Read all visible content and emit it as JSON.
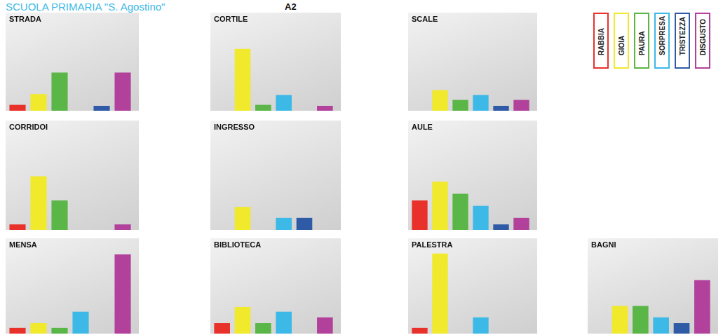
{
  "header": {
    "title": "SCUOLA PRIMARIA \"S. Agostino\"",
    "code": "A2"
  },
  "legend_items": [
    {
      "label": "RABBIA",
      "color": "#e8312a"
    },
    {
      "label": "GIOIA",
      "color": "#f0e92c"
    },
    {
      "label": "PAURA",
      "color": "#5ab646"
    },
    {
      "label": "SORPRESA",
      "color": "#3cb9e6"
    },
    {
      "label": "TRISTEZZA",
      "color": "#2f5aa6"
    },
    {
      "label": "DISGUSTO",
      "color": "#b2419b"
    }
  ],
  "chart_data": [
    {
      "type": "bar",
      "title": "STRADA",
      "categories": [
        "RABBIA",
        "GIOIA",
        "PAURA",
        "SORPRESA",
        "TRISTEZZA",
        "DISGUSTO"
      ],
      "values": [
        6,
        17,
        39,
        0,
        5,
        39
      ],
      "colors": [
        "#e8312a",
        "#f0e92c",
        "#5ab646",
        "#3cb9e6",
        "#2f5aa6",
        "#b2419b"
      ],
      "ylim": [
        0,
        100
      ],
      "tick_labels": false,
      "grid": false
    },
    {
      "type": "bar",
      "title": "CORTILE",
      "categories": [
        "RABBIA",
        "GIOIA",
        "PAURA",
        "SORPRESA",
        "TRISTEZZA",
        "DISGUSTO"
      ],
      "values": [
        0,
        63,
        6,
        16,
        0,
        5
      ],
      "colors": [
        "#e8312a",
        "#f0e92c",
        "#5ab646",
        "#3cb9e6",
        "#2f5aa6",
        "#b2419b"
      ],
      "ylim": [
        0,
        100
      ],
      "tick_labels": false,
      "grid": false
    },
    {
      "type": "bar",
      "title": "SCALE",
      "categories": [
        "RABBIA",
        "GIOIA",
        "PAURA",
        "SORPRESA",
        "TRISTEZZA",
        "DISGUSTO"
      ],
      "values": [
        0,
        21,
        11,
        16,
        5,
        11
      ],
      "colors": [
        "#e8312a",
        "#f0e92c",
        "#5ab646",
        "#3cb9e6",
        "#2f5aa6",
        "#b2419b"
      ],
      "ylim": [
        0,
        100
      ],
      "tick_labels": false,
      "grid": false
    },
    {
      "type": "bar",
      "title": "CORRIDOI",
      "categories": [
        "RABBIA",
        "GIOIA",
        "PAURA",
        "SORPRESA",
        "TRISTEZZA",
        "DISGUSTO"
      ],
      "values": [
        5,
        49,
        27,
        0,
        0,
        5
      ],
      "colors": [
        "#e8312a",
        "#f0e92c",
        "#5ab646",
        "#3cb9e6",
        "#2f5aa6",
        "#b2419b"
      ],
      "ylim": [
        0,
        100
      ],
      "tick_labels": false,
      "grid": false
    },
    {
      "type": "bar",
      "title": "INGRESSO",
      "categories": [
        "RABBIA",
        "GIOIA",
        "PAURA",
        "SORPRESA",
        "TRISTEZZA",
        "DISGUSTO"
      ],
      "values": [
        0,
        21,
        0,
        11,
        11,
        0
      ],
      "colors": [
        "#e8312a",
        "#f0e92c",
        "#5ab646",
        "#3cb9e6",
        "#2f5aa6",
        "#b2419b"
      ],
      "ylim": [
        0,
        100
      ],
      "tick_labels": false,
      "grid": false
    },
    {
      "type": "bar",
      "title": "AULE",
      "categories": [
        "RABBIA",
        "GIOIA",
        "PAURA",
        "SORPRESA",
        "TRISTEZZA",
        "DISGUSTO"
      ],
      "values": [
        27,
        44,
        33,
        22,
        5,
        11
      ],
      "colors": [
        "#e8312a",
        "#f0e92c",
        "#5ab646",
        "#3cb9e6",
        "#2f5aa6",
        "#b2419b"
      ],
      "ylim": [
        0,
        100
      ],
      "tick_labels": false,
      "grid": false
    },
    {
      "type": "bar",
      "title": "MENSA",
      "categories": [
        "RABBIA",
        "GIOIA",
        "PAURA",
        "SORPRESA",
        "TRISTEZZA",
        "DISGUSTO"
      ],
      "values": [
        6,
        11,
        6,
        23,
        0,
        83
      ],
      "colors": [
        "#e8312a",
        "#f0e92c",
        "#5ab646",
        "#3cb9e6",
        "#2f5aa6",
        "#b2419b"
      ],
      "ylim": [
        0,
        100
      ],
      "tick_labels": false,
      "grid": false
    },
    {
      "type": "bar",
      "title": "BIBLIOTECA",
      "categories": [
        "RABBIA",
        "GIOIA",
        "PAURA",
        "SORPRESA",
        "TRISTEZZA",
        "DISGUSTO"
      ],
      "values": [
        11,
        28,
        11,
        23,
        0,
        17
      ],
      "colors": [
        "#e8312a",
        "#f0e92c",
        "#5ab646",
        "#3cb9e6",
        "#2f5aa6",
        "#b2419b"
      ],
      "ylim": [
        0,
        100
      ],
      "tick_labels": false,
      "grid": false
    },
    {
      "type": "bar",
      "title": "PALESTRA",
      "categories": [
        "RABBIA",
        "GIOIA",
        "PAURA",
        "SORPRESA",
        "TRISTEZZA",
        "DISGUSTO"
      ],
      "values": [
        6,
        84,
        0,
        17,
        0,
        0
      ],
      "colors": [
        "#e8312a",
        "#f0e92c",
        "#5ab646",
        "#3cb9e6",
        "#2f5aa6",
        "#b2419b"
      ],
      "ylim": [
        0,
        100
      ],
      "tick_labels": false,
      "grid": false
    },
    {
      "type": "bar",
      "title": "BAGNI",
      "categories": [
        "RABBIA",
        "GIOIA",
        "PAURA",
        "SORPRESA",
        "TRISTEZZA",
        "DISGUSTO"
      ],
      "values": [
        0,
        29,
        29,
        17,
        11,
        56
      ],
      "colors": [
        "#e8312a",
        "#f0e92c",
        "#5ab646",
        "#3cb9e6",
        "#2f5aa6",
        "#b2419b"
      ],
      "ylim": [
        0,
        100
      ],
      "tick_labels": false,
      "grid": false
    }
  ]
}
